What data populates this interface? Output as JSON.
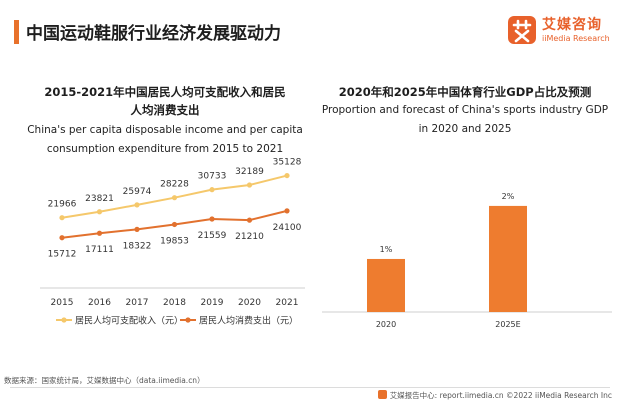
{
  "header": {
    "title": "中国运动鞋服行业经济发展驱动力",
    "logo_cn": "艾媒咨询",
    "logo_en": "iiMedia Research"
  },
  "colors": {
    "accent": "#e8712b",
    "income_line": "#f5c86b",
    "expense_line": "#e2712e",
    "bar": "#ee7c2f",
    "axis": "#cfcfcf"
  },
  "chart_data": [
    {
      "type": "line",
      "title_cn": "2015-2021年中国居民人均可支配收入和居民人均消费支出",
      "title_cn_line1": "2015-2021年中国居民人均可支配收入和居民",
      "title_cn_line2": "人均消费支出",
      "title_en_line1": "China's per capita disposable income and per capita",
      "title_en_line2": "consumption expenditure from 2015 to 2021",
      "x": [
        "2015",
        "2016",
        "2017",
        "2018",
        "2019",
        "2020",
        "2021"
      ],
      "series": [
        {
          "name": "居民人均可支配收入（元）",
          "values": [
            21966,
            23821,
            25974,
            28228,
            30733,
            32189,
            35128
          ],
          "labels": [
            "21966",
            "23821",
            "25974",
            "28228",
            "30733",
            "32189",
            "35128"
          ]
        },
        {
          "name": "居民人均消费支出（元）",
          "values": [
            15712,
            17111,
            18322,
            19853,
            21559,
            21210,
            24100
          ],
          "labels": [
            "15712",
            "17111",
            "18322",
            "19853",
            "21559",
            "21210",
            "24100"
          ]
        }
      ],
      "ylim": [
        0,
        40000
      ],
      "legend": "bottom",
      "grid": false
    },
    {
      "type": "bar",
      "title_cn": "2020年和2025年中国体育行业GDP占比及预测",
      "title_en_line1": "Proportion and forecast of China's sports industry GDP",
      "title_en_line2": "in 2020 and 2025",
      "categories": [
        "2020",
        "2025E"
      ],
      "values": [
        1,
        2
      ],
      "labels": [
        "1%",
        "2%"
      ],
      "ylim": [
        0,
        2.3
      ],
      "grid": false
    }
  ],
  "footer": {
    "source": "数据来源：国家统计局，艾媒数据中心（data.iimedia.cn）",
    "right": "艾媒报告中心: report.iimedia.cn   ©2022  iiMedia Research  Inc"
  }
}
